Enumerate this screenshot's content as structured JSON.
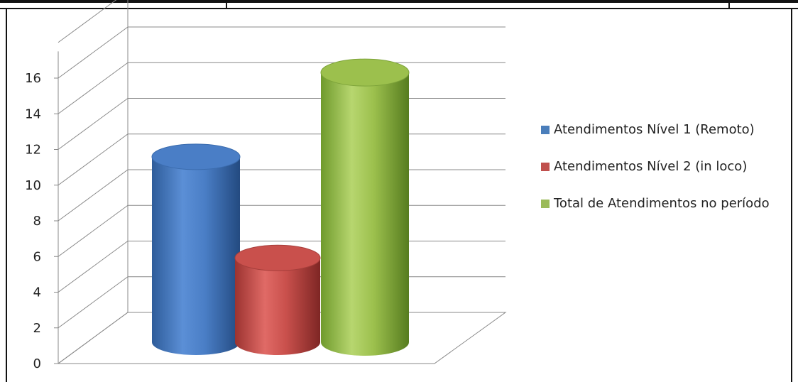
{
  "chart_data": {
    "type": "bar",
    "style": "3d-cylinder",
    "title": "",
    "xlabel": "",
    "ylabel": "",
    "ylim": [
      0,
      16
    ],
    "yticks": [
      "0",
      "2",
      "4",
      "6",
      "8",
      "10",
      "12",
      "14",
      "16"
    ],
    "grid": true,
    "legend_position": "right",
    "series": [
      {
        "name": "Atendimentos Nível 1 (Remoto)",
        "value": 11,
        "color": "#4A7EBB"
      },
      {
        "name": "Atendimentos Nível 2 (in loco)",
        "value": 5,
        "color": "#C0504D"
      },
      {
        "name": "Total de Atendimentos no período",
        "value": 16,
        "color": "#9BBB59"
      }
    ]
  }
}
